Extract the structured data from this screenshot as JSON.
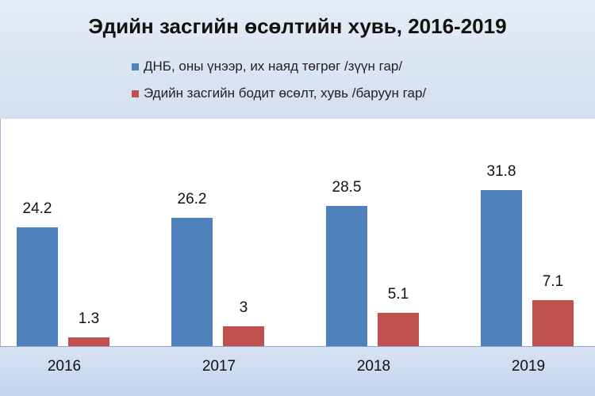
{
  "chart_data": {
    "type": "bar",
    "title": "Эдийн засгийн өсөлтийн хувь, 2016-2019",
    "categories": [
      "2016",
      "2017",
      "2018",
      "2019"
    ],
    "series": [
      {
        "name": "ДНБ, оны үнээр, их наяд төгрөг /зүүн гар/",
        "values": [
          24.2,
          26.2,
          28.5,
          31.8
        ],
        "color": "#4f81bd",
        "labels": [
          "24.2",
          "26.2",
          "28.5",
          "31.8"
        ]
      },
      {
        "name": "Эдийн засгийн бодит өсөлт, хувь /баруун гар/",
        "values": [
          1.3,
          3,
          5.1,
          7.1
        ],
        "color": "#c0504d",
        "labels": [
          "1.3",
          "3",
          "5.1",
          "7.1"
        ]
      }
    ],
    "legend": "top"
  }
}
